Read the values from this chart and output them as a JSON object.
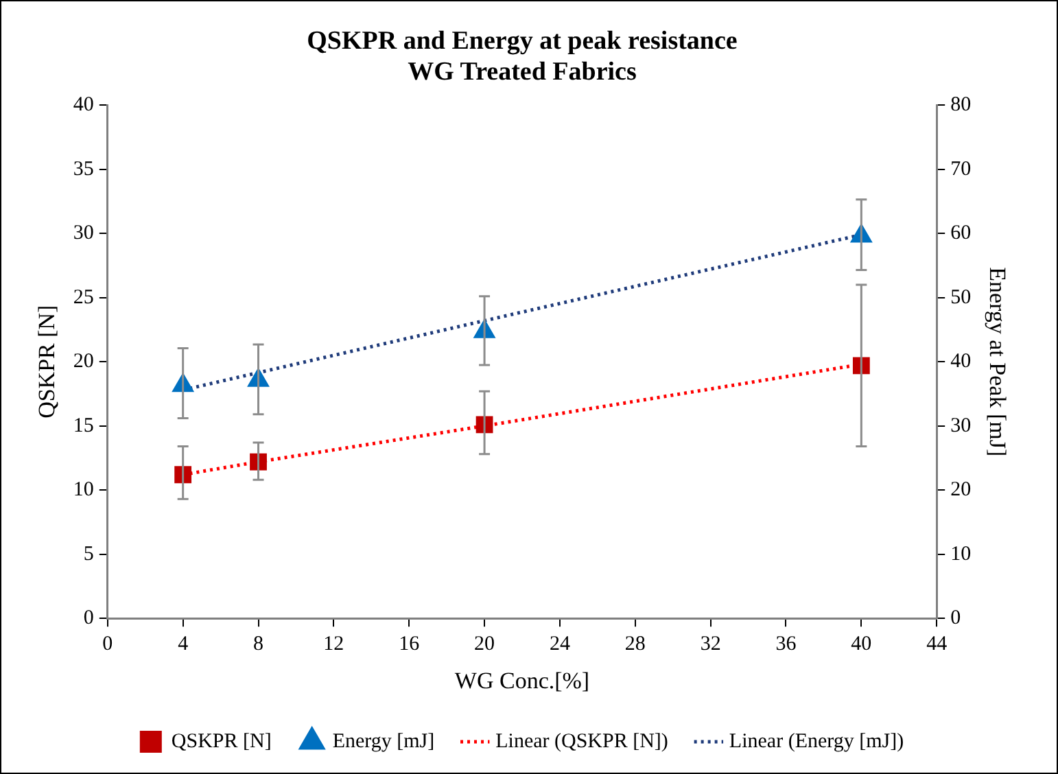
{
  "chart_data": {
    "type": "scatter",
    "title": "QSKPR and Energy at peak resistance\nWG Treated Fabrics",
    "xlabel": "WG Conc.[%]",
    "ylabel": "QSKPR [N]",
    "y2label": "Energy at Peak [mJ]",
    "x": [
      4,
      8,
      20,
      40
    ],
    "series": [
      {
        "name": "QSKPR [N]",
        "type": "scatter",
        "marker": "square",
        "color": "#c00000",
        "values": [
          11.2,
          12.2,
          15.1,
          19.7
        ],
        "errors": [
          [
            9.3,
            13.4
          ],
          [
            10.8,
            13.7
          ],
          [
            12.8,
            17.7
          ],
          [
            13.4,
            26.0
          ]
        ]
      },
      {
        "name": "Energy [mJ]",
        "type": "scatter",
        "marker": "triangle",
        "axis": "y2",
        "color": "#0070c0",
        "values": [
          36.3,
          37.1,
          44.7,
          59.6
        ],
        "errors": [
          [
            31.2,
            42.1
          ],
          [
            31.8,
            42.7
          ],
          [
            39.5,
            50.2
          ],
          [
            54.3,
            65.3
          ]
        ]
      },
      {
        "name": "Linear (QSKPR [N])",
        "type": "line",
        "marker": "none",
        "line_style": "dotted",
        "color": "#ff0000",
        "values": [
          11.2,
          12.2,
          15.0,
          19.8
        ]
      },
      {
        "name": "Linear (Energy [mJ])",
        "type": "line",
        "marker": "none",
        "line_style": "dotted",
        "axis": "y2",
        "color": "#1f3b7a",
        "values": [
          35.6,
          38.3,
          46.4,
          59.8
        ]
      }
    ],
    "xlim": [
      0,
      44
    ],
    "xticks": [
      0,
      4,
      8,
      12,
      16,
      20,
      24,
      28,
      32,
      36,
      40,
      44
    ],
    "ylim": [
      0,
      40
    ],
    "yticks": [
      0,
      5,
      10,
      15,
      20,
      25,
      30,
      35,
      40
    ],
    "y2lim": [
      0,
      80
    ],
    "y2ticks": [
      0,
      10,
      20,
      30,
      40,
      50,
      60,
      70,
      80
    ],
    "legend": "bottom"
  }
}
